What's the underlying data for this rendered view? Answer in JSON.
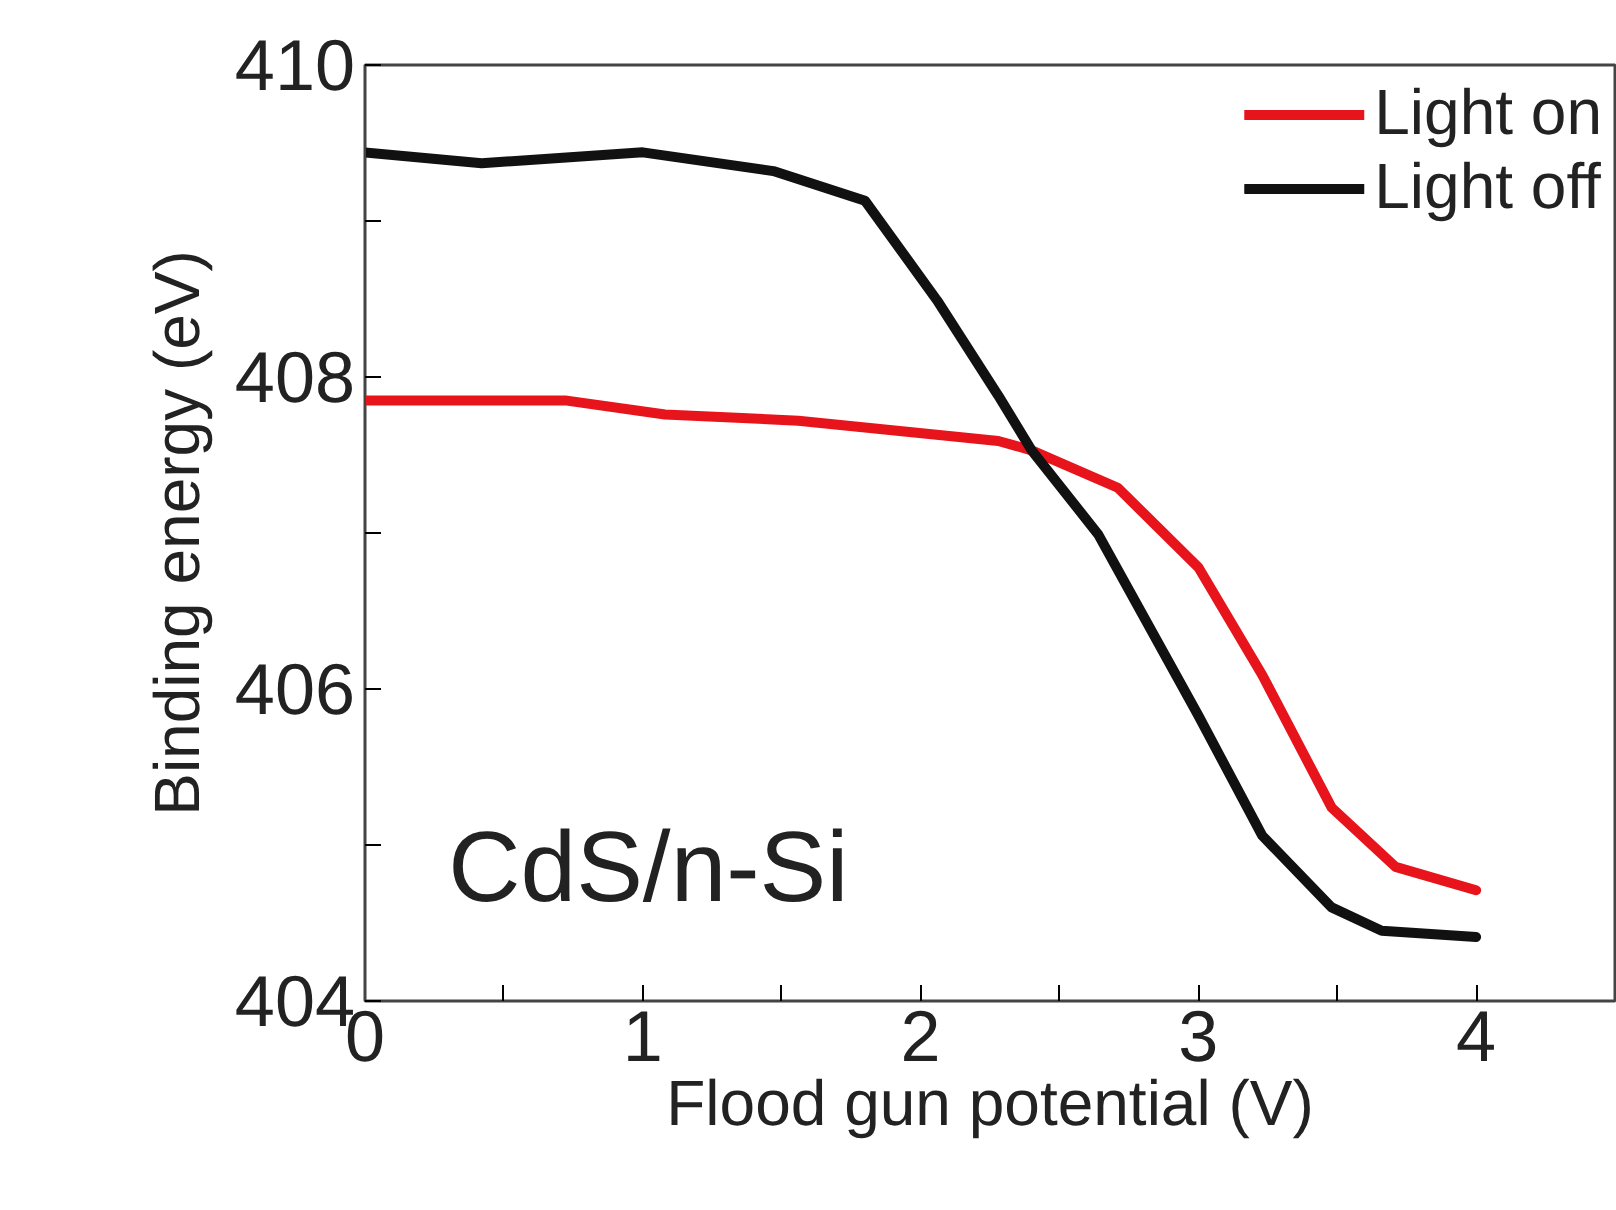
{
  "chart_data": {
    "type": "line",
    "xlabel": "Flood gun potential (V)",
    "ylabel": "Binding energy (eV)",
    "xlim": [
      0,
      4.5
    ],
    "ylim": [
      404,
      410
    ],
    "xticks": [
      0,
      {
        "value": 0.5,
        "label": null
      },
      1,
      {
        "value": 1.5,
        "label": null
      },
      2,
      {
        "value": 2.5,
        "label": null
      },
      3,
      {
        "value": 3.5,
        "label": null
      },
      4
    ],
    "yticks": [
      404,
      {
        "value": 405,
        "label": null
      },
      406,
      {
        "value": 407,
        "label": null
      },
      408,
      {
        "value": 409,
        "label": null
      },
      410
    ],
    "grid": false,
    "legend": "top right",
    "line_style": "solid",
    "marker": "none",
    "annotations": [
      {
        "text": "CdS/n-Si"
      }
    ],
    "series": [
      {
        "name": "Light on",
        "color": "#e8141c",
        "x": [
          0,
          0.72,
          1.08,
          1.56,
          2.28,
          2.4,
          2.71,
          3.0,
          3.23,
          3.48,
          3.71,
          4.0
        ],
        "values": [
          407.85,
          407.85,
          407.76,
          407.72,
          407.59,
          407.53,
          407.29,
          406.78,
          406.09,
          405.24,
          404.86,
          404.71
        ]
      },
      {
        "name": "Light off",
        "color": "#111111",
        "x": [
          0,
          0.42,
          1.0,
          1.47,
          1.8,
          2.06,
          2.28,
          2.4,
          2.64,
          3.0,
          3.23,
          3.48,
          3.66,
          4.0
        ],
        "values": [
          409.44,
          409.37,
          409.44,
          409.32,
          409.13,
          408.49,
          407.88,
          407.53,
          406.99,
          405.83,
          405.06,
          404.6,
          404.45,
          404.41
        ]
      }
    ]
  }
}
